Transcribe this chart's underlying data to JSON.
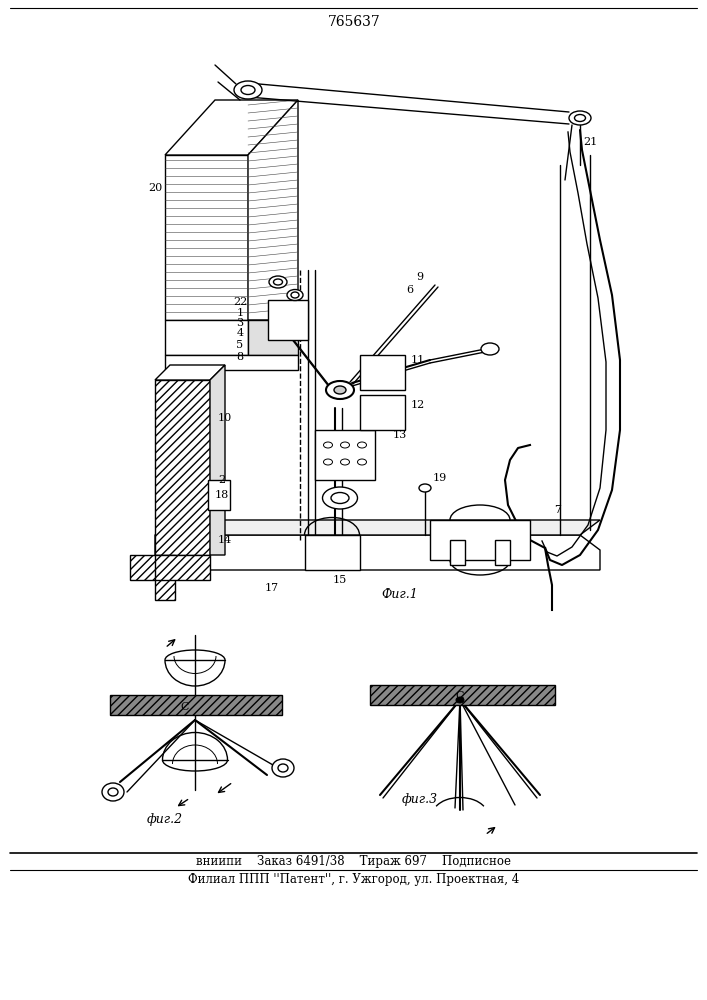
{
  "patent_number": "765637",
  "bg_color": "#ffffff",
  "line_color": "#000000",
  "fig1_label": "Фиг.1",
  "fig2_label": "фиг.2",
  "fig3_label": "фиг.3",
  "footer_line1": "вниипи    Заказ 6491/38    Тираж 697    Подписное",
  "footer_line2": "Филиал ППП ''Патент'', г. Ужгород, ул. Проектная, 4"
}
